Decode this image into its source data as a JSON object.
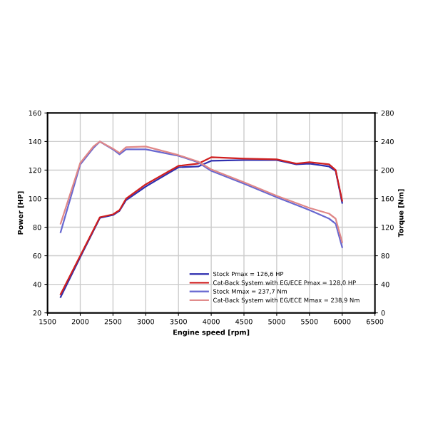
{
  "chart_data": {
    "type": "line",
    "xlabel": "Engine speed [rpm]",
    "ylabel": "Power [HP]",
    "y2label": "Torque [Nm]",
    "xlim": [
      1500,
      6500
    ],
    "xticks": [
      1500,
      2000,
      2500,
      3000,
      3500,
      4000,
      4500,
      5000,
      5500,
      6000,
      6500
    ],
    "ylim": [
      20,
      160
    ],
    "yticks": [
      20,
      40,
      60,
      80,
      100,
      120,
      140,
      160
    ],
    "y2lim": [
      0,
      280
    ],
    "y2ticks": [
      0,
      40,
      80,
      120,
      160,
      200,
      240,
      280
    ],
    "grid": true,
    "legend": "bottom right",
    "marker": "none",
    "line_style": "solid",
    "series": [
      {
        "name": "Stock Pmax = 126,6 HP",
        "color": "#3030b0",
        "x": [
          1700,
          2000,
          2300,
          2500,
          2600,
          2700,
          3000,
          3500,
          3800,
          4000,
          4500,
          5000,
          5300,
          5500,
          5800,
          5900,
          6000
        ],
        "values": [
          31,
          59,
          86.5,
          88.5,
          91.5,
          99,
          108.5,
          122,
          122.5,
          126.5,
          127,
          127,
          124,
          124.5,
          122.5,
          119.5,
          97
        ]
      },
      {
        "name": "Cat-Back System with EG/ECE Pmax = 128,0 HP",
        "color": "#d02020",
        "x": [
          1700,
          2000,
          2300,
          2500,
          2600,
          2700,
          3000,
          3500,
          3800,
          4000,
          4500,
          5000,
          5300,
          5500,
          5800,
          5900,
          6000
        ],
        "values": [
          33,
          60,
          87,
          89,
          92,
          100,
          110,
          123,
          124.5,
          129,
          128,
          127.5,
          124.5,
          125.5,
          124,
          120,
          98.5
        ]
      },
      {
        "name": "Stock Mmax = 237,7 Nm",
        "color": "#6868d0",
        "axis": "y2",
        "x": [
          1700,
          2000,
          2200,
          2300,
          2500,
          2600,
          2700,
          3000,
          3500,
          3800,
          4000,
          4500,
          5000,
          5500,
          5800,
          5900,
          6000
        ],
        "values": [
          113,
          208,
          231,
          240,
          229,
          222,
          229,
          229,
          220,
          211,
          199,
          181,
          162,
          144,
          132,
          125,
          92
        ]
      },
      {
        "name": "Cat-Back System with EG/ECE Mmax = 238,9 Nm",
        "color": "#e08888",
        "axis": "y2",
        "x": [
          1700,
          2000,
          2200,
          2300,
          2500,
          2600,
          2700,
          3000,
          3500,
          3800,
          4000,
          4500,
          5000,
          5500,
          5800,
          5900,
          6000
        ],
        "values": [
          125,
          210,
          233,
          240,
          230,
          224,
          232,
          233,
          221,
          212,
          201,
          183,
          164,
          147,
          139,
          132,
          99
        ]
      }
    ]
  }
}
